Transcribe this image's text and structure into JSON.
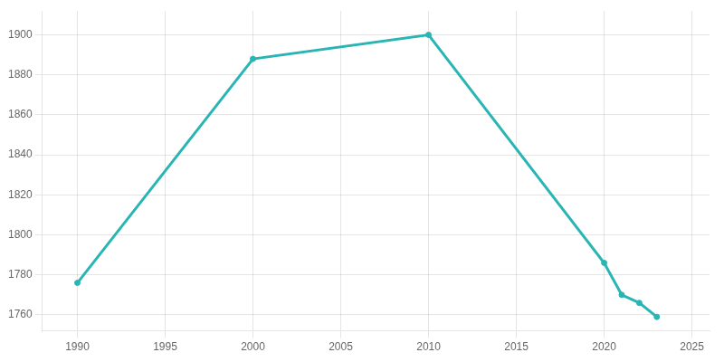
{
  "chart_data": {
    "type": "line",
    "x": [
      1990,
      2000,
      2010,
      2020,
      2021,
      2022,
      2023
    ],
    "values": [
      1776,
      1888,
      1900,
      1786,
      1770,
      1766,
      1759
    ],
    "color": "#2ab5b5",
    "marker": "circle",
    "xlim": [
      1988,
      2026
    ],
    "xticks": [
      1990,
      1995,
      2000,
      2005,
      2010,
      2015,
      2020,
      2025
    ],
    "ylim": [
      1752,
      1912
    ],
    "yticks": [
      1760,
      1780,
      1800,
      1820,
      1840,
      1860,
      1880,
      1900
    ],
    "grid": true
  }
}
